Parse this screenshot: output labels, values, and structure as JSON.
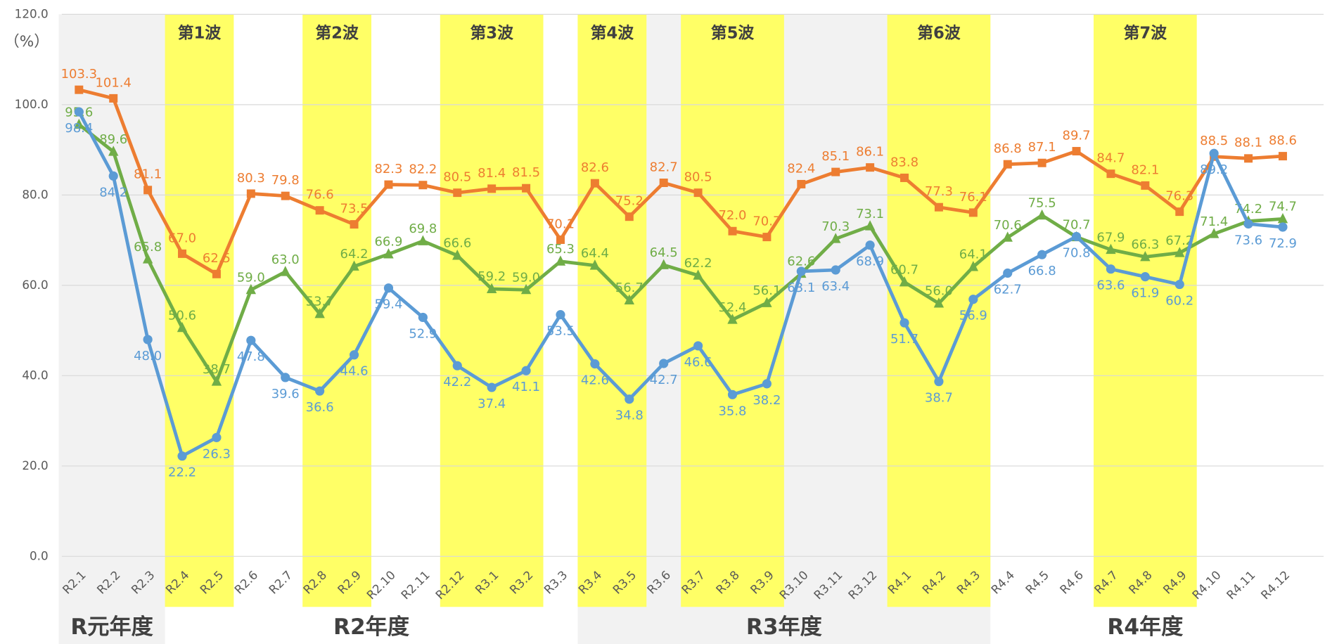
{
  "chart_data": {
    "type": "line",
    "y_unit_label": "（%）",
    "categories": [
      "R2.1",
      "R2.2",
      "R2.3",
      "R2.4",
      "R2.5",
      "R2.6",
      "R2.7",
      "R2.8",
      "R2.9",
      "R2.10",
      "R2.11",
      "R2.12",
      "R3.1",
      "R3.2",
      "R3.3",
      "R3.4",
      "R3.5",
      "R3.6",
      "R3.7",
      "R3.8",
      "R3.9",
      "R3.10",
      "R3.11",
      "R3.12",
      "R4.1",
      "R4.2",
      "R4.3",
      "R4.4",
      "R4.5",
      "R4.6",
      "R4.7",
      "R4.8",
      "R4.9",
      "R4.10",
      "R4.11",
      "R4.12"
    ],
    "series": [
      {
        "color": "#ed7d31",
        "marker": "square",
        "values": [
          103.3,
          101.4,
          81.1,
          67.0,
          62.5,
          80.3,
          79.8,
          76.6,
          73.5,
          82.3,
          82.2,
          80.5,
          81.4,
          81.5,
          70.1,
          82.6,
          75.2,
          82.7,
          80.5,
          72.0,
          70.7,
          82.4,
          85.1,
          86.1,
          83.8,
          77.3,
          76.1,
          86.8,
          87.1,
          89.7,
          84.7,
          82.1,
          76.3,
          88.5,
          88.1,
          88.6
        ]
      },
      {
        "color": "#70ad47",
        "marker": "triangle",
        "values": [
          95.6,
          89.6,
          65.8,
          50.6,
          38.7,
          59.0,
          63.0,
          53.7,
          64.2,
          66.9,
          69.8,
          66.6,
          59.2,
          59.0,
          65.3,
          64.4,
          56.7,
          64.5,
          62.2,
          52.4,
          56.1,
          62.6,
          70.3,
          73.1,
          60.7,
          56.0,
          64.1,
          70.6,
          75.5,
          70.7,
          67.9,
          66.3,
          67.2,
          71.4,
          74.2,
          74.7
        ]
      },
      {
        "color": "#5b9bd5",
        "marker": "circle",
        "values": [
          98.4,
          84.2,
          48.0,
          22.2,
          26.3,
          47.8,
          39.6,
          36.6,
          44.6,
          59.4,
          52.9,
          42.2,
          37.4,
          41.1,
          53.5,
          42.6,
          34.8,
          42.7,
          46.6,
          35.8,
          38.2,
          63.1,
          63.4,
          68.9,
          51.7,
          38.7,
          56.9,
          62.7,
          66.8,
          70.8,
          63.6,
          61.9,
          60.2,
          89.2,
          73.6,
          72.9
        ]
      }
    ],
    "ylim": [
      0,
      120
    ],
    "yticks": [
      {
        "value": 0,
        "label": "0.0"
      },
      {
        "value": 20,
        "label": "20.0"
      },
      {
        "value": 40,
        "label": "40.0"
      },
      {
        "value": 60,
        "label": "60.0"
      },
      {
        "value": 80,
        "label": "80.0"
      },
      {
        "value": 100,
        "label": "100.0"
      },
      {
        "value": 120,
        "label": "120.0"
      }
    ],
    "grid": true,
    "waves": [
      {
        "label": "第1波",
        "start": "R2.4",
        "end": "R2.5"
      },
      {
        "label": "第2波",
        "start": "R2.8",
        "end": "R2.9"
      },
      {
        "label": "第3波",
        "start": "R2.12",
        "end": "R3.2"
      },
      {
        "label": "第4波",
        "start": "R3.4",
        "end": "R3.5"
      },
      {
        "label": "第5波",
        "start": "R3.7",
        "end": "R3.9"
      },
      {
        "label": "第6波",
        "start": "R4.1",
        "end": "R4.3"
      },
      {
        "label": "第7波",
        "start": "R4.7",
        "end": "R4.9"
      }
    ],
    "fiscal_years": [
      {
        "label": "R元年度",
        "start": "R2.1",
        "end": "R2.3",
        "shaded": true
      },
      {
        "label": "R2年度",
        "start": "R2.4",
        "end": "R3.3",
        "shaded": false
      },
      {
        "label": "R3年度",
        "start": "R3.4",
        "end": "R4.3",
        "shaded": true
      },
      {
        "label": "R4年度",
        "start": "R4.4",
        "end": "R4.12",
        "shaded": false
      }
    ]
  }
}
